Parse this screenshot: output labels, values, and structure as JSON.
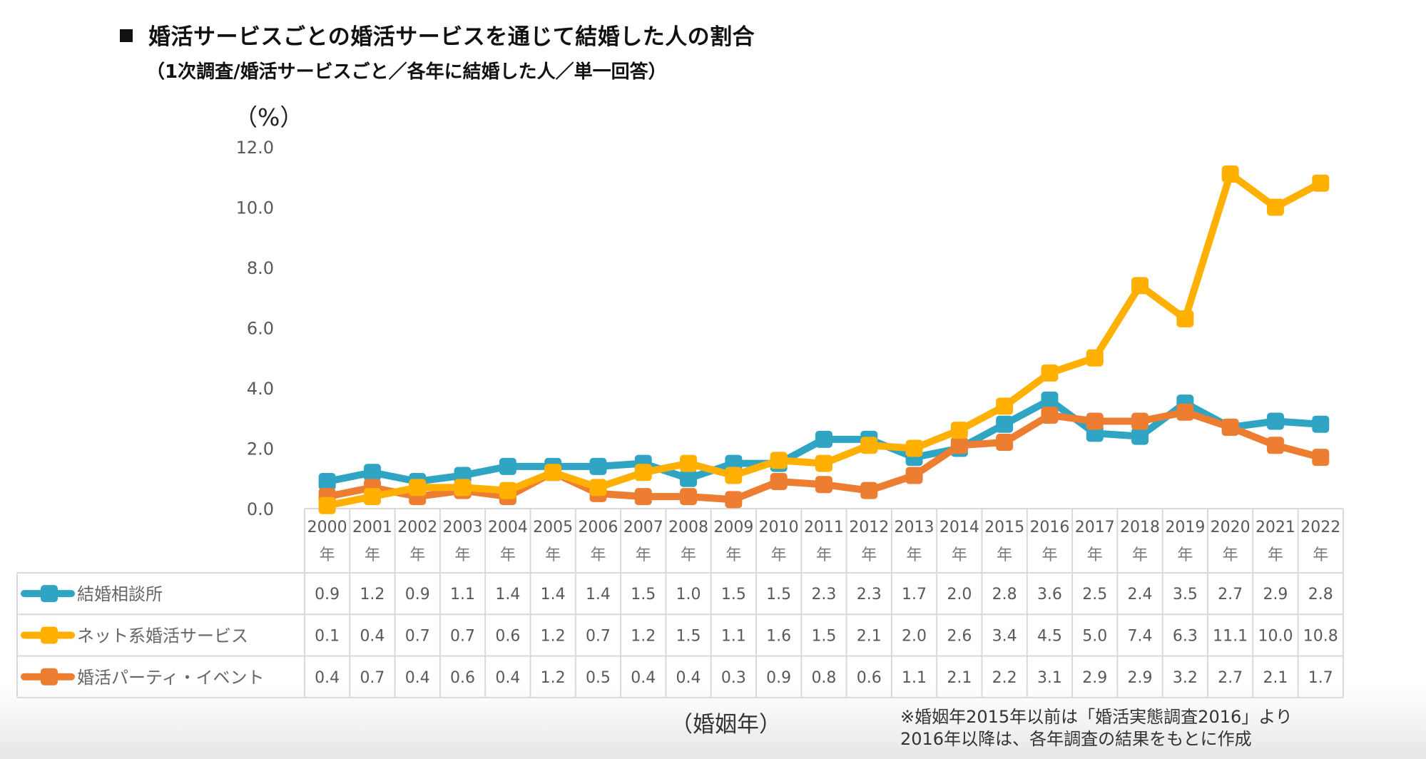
{
  "header": {
    "title": "婚活サービスごとの婚活サービスを通じて結婚した人の割合",
    "subtitle": "（1次調査/婚活サービスごと／各年に結婚した人／単一回答）",
    "unit_label": "（%）"
  },
  "footer": {
    "xlabel": "（婚姻年）",
    "note_line1": "※婚姻年2015年以前は「婚活実態調査2016」より",
    "note_line2": "2016年以降は、各年調査の結果をもとに作成"
  },
  "chart_data": {
    "type": "line",
    "title": "婚活サービスごとの婚活サービスを通じて結婚した人の割合",
    "subtitle": "（1次調査/婚活サービスごと／各年に結婚した人／単一回答）",
    "ylabel": "（%）",
    "xlabel": "（婚姻年）",
    "ylim": [
      0,
      12
    ],
    "yticks": [
      "0.0",
      "2.0",
      "4.0",
      "6.0",
      "8.0",
      "10.0",
      "12.0"
    ],
    "grid": false,
    "legend_placement": "data-table-left",
    "year_suffix": "年",
    "categories": [
      "2000",
      "2001",
      "2002",
      "2003",
      "2004",
      "2005",
      "2006",
      "2007",
      "2008",
      "2009",
      "2010",
      "2011",
      "2012",
      "2013",
      "2014",
      "2015",
      "2016",
      "2017",
      "2018",
      "2019",
      "2020",
      "2021",
      "2022"
    ],
    "series": [
      {
        "name": "結婚相談所",
        "color": "#2fa5c3",
        "values": [
          0.9,
          1.2,
          0.9,
          1.1,
          1.4,
          1.4,
          1.4,
          1.5,
          1.0,
          1.5,
          1.5,
          2.3,
          2.3,
          1.7,
          2.0,
          2.8,
          3.6,
          2.5,
          2.4,
          3.5,
          2.7,
          2.9,
          2.8
        ]
      },
      {
        "name": "ネット系婚活サービス",
        "color": "#ffb000",
        "values": [
          0.1,
          0.4,
          0.7,
          0.7,
          0.6,
          1.2,
          0.7,
          1.2,
          1.5,
          1.1,
          1.6,
          1.5,
          2.1,
          2.0,
          2.6,
          3.4,
          4.5,
          5.0,
          7.4,
          6.3,
          11.1,
          10.0,
          10.8
        ]
      },
      {
        "name": "婚活パーティ・イベント",
        "color": "#ed7d31",
        "values": [
          0.4,
          0.7,
          0.4,
          0.6,
          0.4,
          1.2,
          0.5,
          0.4,
          0.4,
          0.3,
          0.9,
          0.8,
          0.6,
          1.1,
          2.1,
          2.2,
          3.1,
          2.9,
          2.9,
          3.2,
          2.7,
          2.1,
          1.7
        ]
      }
    ]
  }
}
